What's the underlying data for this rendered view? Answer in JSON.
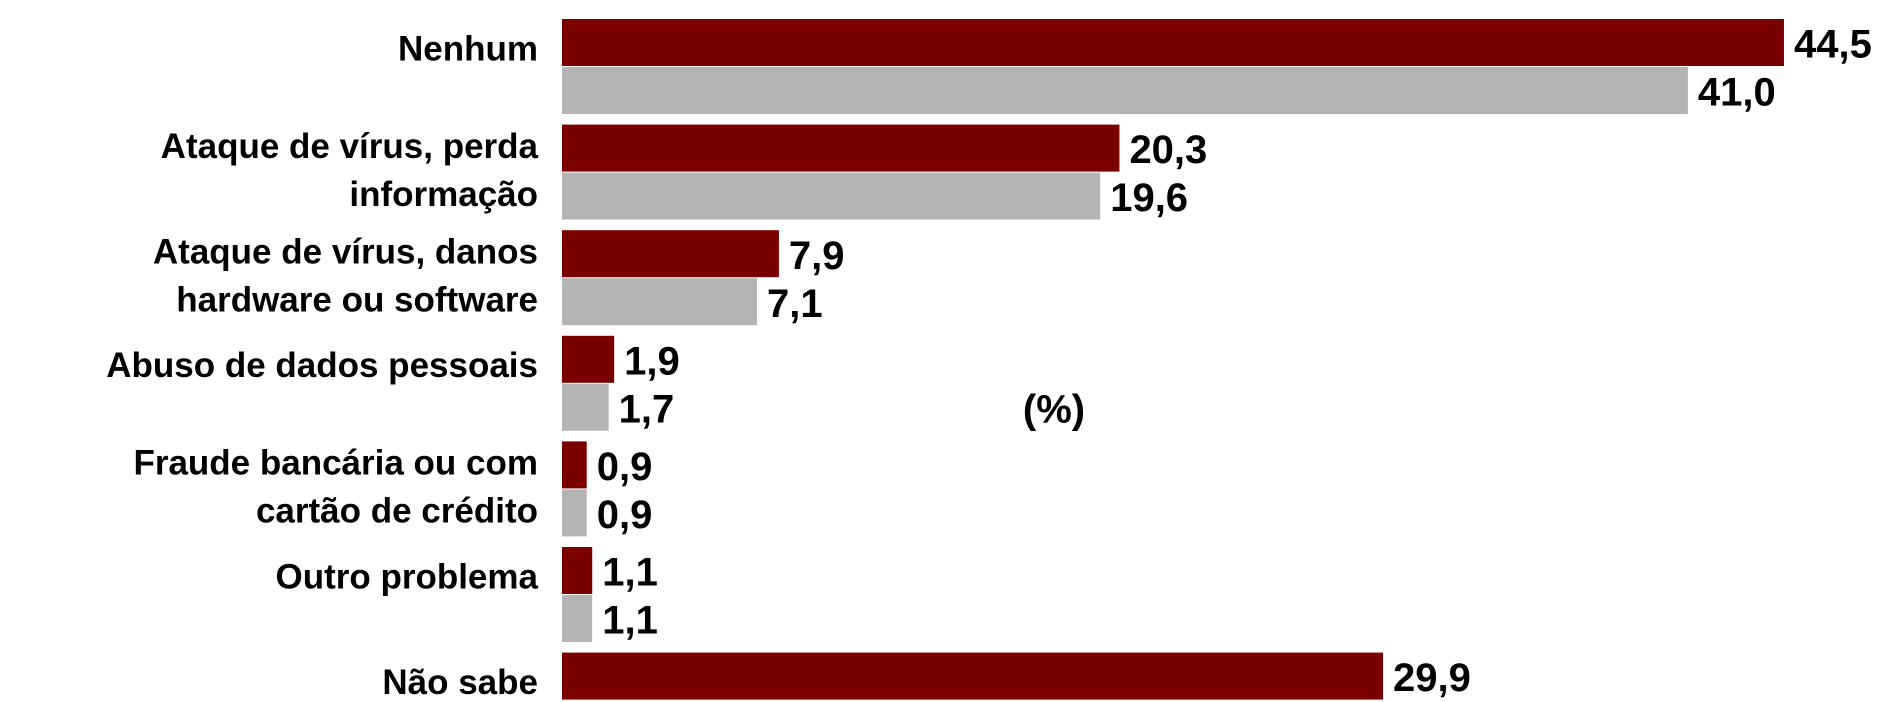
{
  "chart_data": {
    "type": "bar",
    "orientation": "horizontal",
    "annotation": "(%)",
    "categories": [
      [
        "Nenhum"
      ],
      [
        "Ataque de vírus, perda",
        "informação"
      ],
      [
        "Ataque de vírus, danos",
        "hardware ou software"
      ],
      [
        "Abuso de dados pessoais"
      ],
      [
        "Fraude bancária ou com",
        "cartão de crédito"
      ],
      [
        "Outro problema"
      ],
      [
        "Não sabe"
      ]
    ],
    "series": [
      {
        "color": "#7a0000",
        "values": [
          44.5,
          20.3,
          7.9,
          1.9,
          0.9,
          1.1,
          29.9
        ],
        "value_labels": [
          "44,5",
          "20,3",
          "7,9",
          "1,9",
          "0,9",
          "1,1",
          "29,9"
        ]
      },
      {
        "color": "#b4b4b4",
        "values": [
          41.0,
          19.6,
          7.1,
          1.7,
          0.9,
          1.1,
          null
        ],
        "value_labels": [
          "41,0",
          "19,6",
          "7,1",
          "1,7",
          "0,9",
          "1,1",
          null
        ]
      }
    ]
  }
}
